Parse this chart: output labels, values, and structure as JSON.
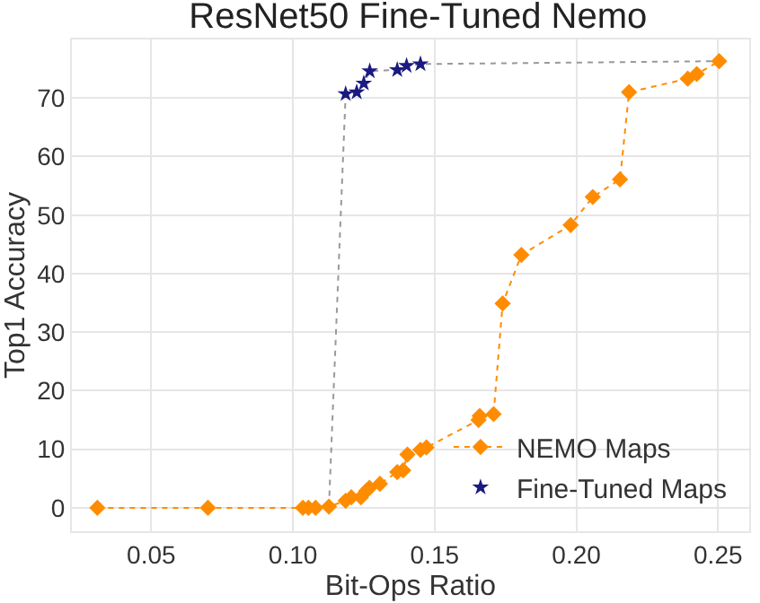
{
  "chart_data": {
    "type": "line",
    "title": "ResNet50 Fine-Tuned Nemo",
    "xlabel": "Bit-Ops Ratio",
    "ylabel": "Top1 Accuracy",
    "xlim": [
      0.022,
      0.261
    ],
    "xticks": [
      0.05,
      {
        "value": 0.1,
        "label": "0.10"
      },
      0.15,
      {
        "value": 0.2,
        "label": "0.20"
      },
      0.25
    ],
    "ylim": [
      -4,
      80
    ],
    "yticks": [
      0,
      10,
      20,
      30,
      40,
      50,
      60,
      70
    ],
    "grid": true,
    "legend": "bottom right",
    "series": [
      {
        "type": "line",
        "color": "#999999",
        "line_style": "dotted",
        "marker": "none",
        "x": [
          0.1127,
          0.1186,
          0.1225,
          0.125,
          0.1271,
          0.1368,
          0.1401,
          0.145,
          0.2504
        ],
        "values": [
          0.2,
          70.7,
          71,
          72.5,
          74.6,
          74.8,
          75.5,
          75.8,
          76.3
        ]
      },
      {
        "name": "NEMO Maps",
        "color": "#ff8c00",
        "line_style": "dotted",
        "marker": "diamond",
        "x": [
          0.031,
          0.07,
          0.1035,
          0.1055,
          0.108,
          0.1127,
          0.1186,
          0.1206,
          0.124,
          0.1259,
          0.127,
          0.1307,
          0.1368,
          0.1389,
          0.1404,
          0.145,
          0.1471,
          0.1655,
          0.1659,
          0.1708,
          0.174,
          0.1806,
          0.198,
          0.2058,
          0.2154,
          0.2186,
          0.2393,
          0.2425,
          0.2504
        ],
        "values": [
          0,
          0,
          0,
          0,
          0,
          0.2,
          1.2,
          1.8,
          1.8,
          2.9,
          3.4,
          4.1,
          6.1,
          6.4,
          9.1,
          9.9,
          10.3,
          15,
          15.7,
          16,
          34.9,
          43.2,
          48.3,
          53.1,
          56.1,
          71,
          73.3,
          74.1,
          76.3
        ]
      },
      {
        "name": "Fine-Tuned Maps",
        "type": "scatter",
        "color": "#1a1a80",
        "marker": "star",
        "x": [
          0.1186,
          0.1225,
          0.125,
          0.1271,
          0.1368,
          0.1401,
          0.145
        ],
        "values": [
          70.7,
          71,
          72.5,
          74.6,
          74.8,
          75.5,
          75.8
        ]
      }
    ]
  }
}
